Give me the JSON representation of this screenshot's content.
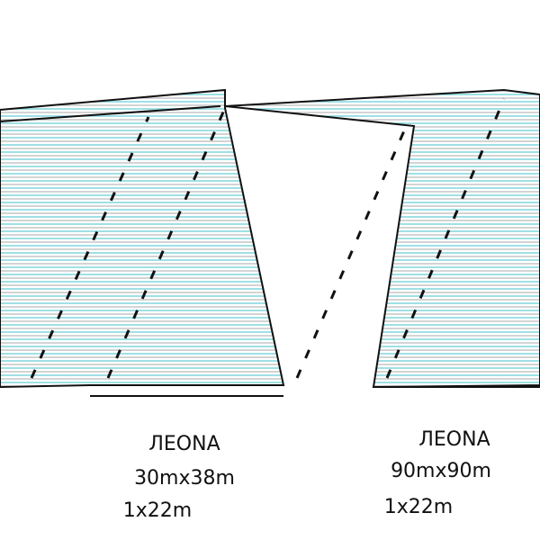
{
  "products": [
    {
      "name": "ЛЕОNА",
      "size": "30mx38m",
      "depth": "1x22m"
    },
    {
      "name": "ЛЕОNА",
      "size": "90mx90m",
      "depth": "1x22m"
    }
  ]
}
